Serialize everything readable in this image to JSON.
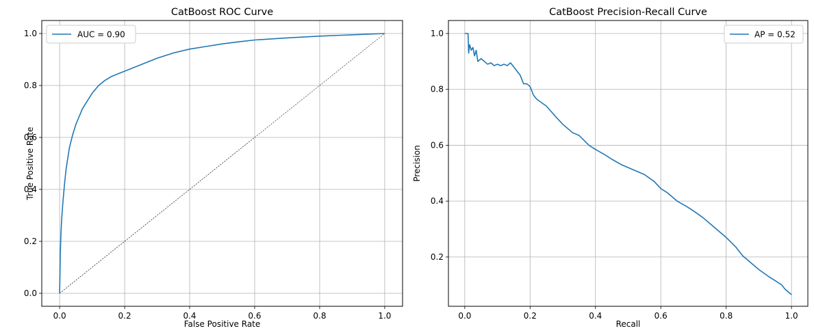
{
  "chart_data": [
    {
      "type": "line",
      "title": "CatBoost ROC Curve",
      "xlabel": "False Positive Rate",
      "ylabel": "True Positive Rate",
      "xlim": [
        -0.055,
        1.055
      ],
      "ylim": [
        -0.05,
        1.05
      ],
      "xticks": [
        "0.0",
        "0.2",
        "0.4",
        "0.6",
        "0.8",
        "1.0"
      ],
      "yticks": [
        "0.0",
        "0.2",
        "0.4",
        "0.6",
        "0.8",
        "1.0"
      ],
      "grid": true,
      "legend_position": "top-left",
      "series": [
        {
          "name": "AUC = 0.90",
          "color": "#1f77b4",
          "x": [
            0,
            0.002,
            0.004,
            0.006,
            0.01,
            0.015,
            0.02,
            0.03,
            0.04,
            0.05,
            0.06,
            0.07,
            0.08,
            0.1,
            0.12,
            0.14,
            0.16,
            0.18,
            0.2,
            0.25,
            0.3,
            0.35,
            0.4,
            0.45,
            0.5,
            0.55,
            0.6,
            0.7,
            0.8,
            0.9,
            1.0
          ],
          "y": [
            0,
            0.15,
            0.23,
            0.28,
            0.35,
            0.42,
            0.48,
            0.56,
            0.61,
            0.65,
            0.68,
            0.71,
            0.73,
            0.77,
            0.8,
            0.82,
            0.835,
            0.845,
            0.855,
            0.88,
            0.905,
            0.925,
            0.94,
            0.95,
            0.96,
            0.968,
            0.975,
            0.983,
            0.99,
            0.995,
            1.0
          ]
        },
        {
          "name": "",
          "color": "#000000",
          "style": "dashed",
          "x": [
            0,
            1
          ],
          "y": [
            0,
            1
          ]
        }
      ]
    },
    {
      "type": "line",
      "title": "CatBoost Precision-Recall Curve",
      "xlabel": "Recall",
      "ylabel": "Precision",
      "xlim": [
        -0.05,
        1.05
      ],
      "ylim": [
        0.0235,
        1.0465
      ],
      "xticks": [
        "0.0",
        "0.2",
        "0.4",
        "0.6",
        "0.8",
        "1.0"
      ],
      "yticks": [
        "0.2",
        "0.4",
        "0.6",
        "0.8",
        "1.0"
      ],
      "grid": true,
      "legend_position": "top-right",
      "series": [
        {
          "name": "AP = 0.52",
          "color": "#1f77b4",
          "x": [
            0,
            0.005,
            0.01,
            0.012,
            0.015,
            0.02,
            0.025,
            0.03,
            0.035,
            0.04,
            0.05,
            0.06,
            0.07,
            0.08,
            0.09,
            0.1,
            0.11,
            0.12,
            0.13,
            0.14,
            0.15,
            0.16,
            0.17,
            0.18,
            0.19,
            0.2,
            0.21,
            0.22,
            0.25,
            0.28,
            0.3,
            0.33,
            0.35,
            0.38,
            0.4,
            0.43,
            0.45,
            0.48,
            0.5,
            0.53,
            0.55,
            0.58,
            0.6,
            0.62,
            0.65,
            0.68,
            0.7,
            0.73,
            0.75,
            0.78,
            0.8,
            0.83,
            0.85,
            0.88,
            0.9,
            0.93,
            0.95,
            0.97,
            0.98,
            0.99,
            1.0
          ],
          "y": [
            1.0,
            1.0,
            1.0,
            0.93,
            0.96,
            0.94,
            0.95,
            0.92,
            0.94,
            0.9,
            0.91,
            0.9,
            0.89,
            0.895,
            0.885,
            0.89,
            0.885,
            0.89,
            0.885,
            0.895,
            0.88,
            0.865,
            0.85,
            0.82,
            0.82,
            0.81,
            0.78,
            0.765,
            0.74,
            0.7,
            0.675,
            0.645,
            0.635,
            0.6,
            0.585,
            0.565,
            0.55,
            0.53,
            0.52,
            0.505,
            0.495,
            0.47,
            0.445,
            0.43,
            0.4,
            0.38,
            0.365,
            0.34,
            0.32,
            0.29,
            0.27,
            0.235,
            0.205,
            0.175,
            0.155,
            0.13,
            0.115,
            0.1,
            0.085,
            0.075,
            0.065
          ]
        }
      ]
    }
  ]
}
